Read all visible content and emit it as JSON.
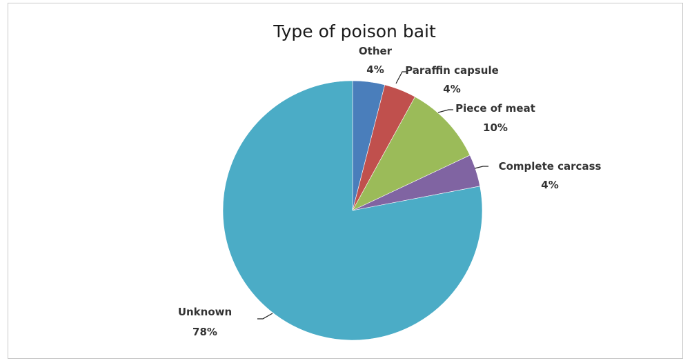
{
  "chart_data": {
    "type": "pie",
    "title": "Type of poison bait",
    "start_angle_deg": 0,
    "direction": "clockwise",
    "slices": [
      {
        "label": "Other",
        "value": 4,
        "value_label": "4%",
        "color": "#4a7ebb"
      },
      {
        "label": "Paraffin capsule",
        "value": 4,
        "value_label": "4%",
        "color": "#c0504d"
      },
      {
        "label": "Piece of meat",
        "value": 10,
        "value_label": "10%",
        "color": "#9bbb59"
      },
      {
        "label": "Complete carcass",
        "value": 4,
        "value_label": "4%",
        "color": "#8064a2"
      },
      {
        "label": "Unknown",
        "value": 78,
        "value_label": "78%",
        "color": "#4bacc6"
      }
    ],
    "legend": "none"
  }
}
